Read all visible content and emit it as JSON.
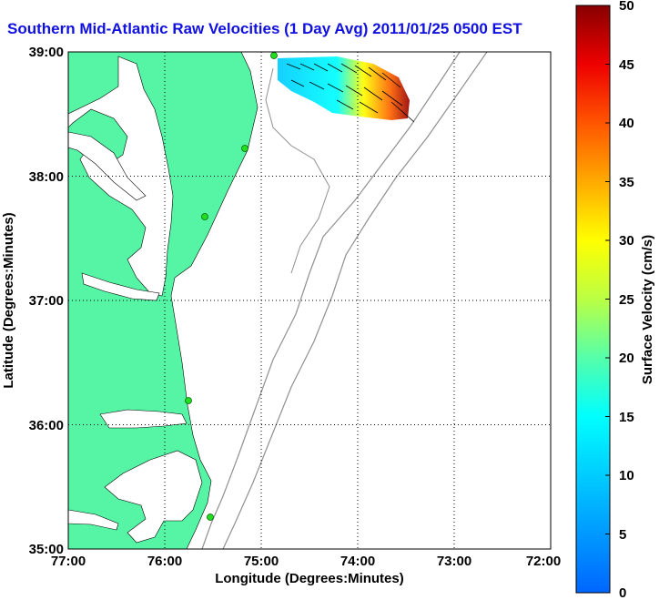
{
  "title": "Southern Mid-Atlantic Raw Velocities (1 Day Avg) 2011/01/25 0500 EST",
  "xlabel": "Longitude (Degrees:Minutes)",
  "ylabel": "Latitude (Degrees:Minutes)",
  "x_ticks": [
    "77:00",
    "76:00",
    "75:00",
    "74:00",
    "73:00",
    "72:00"
  ],
  "y_ticks": [
    "39:00",
    "38:00",
    "37:00",
    "36:00",
    "35:00"
  ],
  "colorbar": {
    "label": "Surface Velocity (cm/s)",
    "ticks": [
      "50",
      "45",
      "40",
      "35",
      "30",
      "25",
      "20",
      "15",
      "10",
      "5",
      "0"
    ],
    "min": 0,
    "max": 50
  },
  "colors": {
    "land": "#55f5a5",
    "title": "#1010e0",
    "bathymetry": "#909090",
    "stations": "#22dd22"
  }
}
